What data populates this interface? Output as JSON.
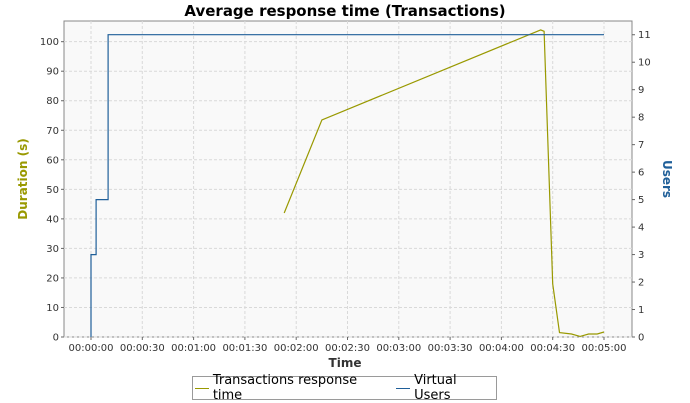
{
  "chart_data": {
    "type": "line",
    "title": "Average response time (Transactions)",
    "xlabel": "Time",
    "ylabel": "Duration (s)",
    "y2label": "Users",
    "xlim": [
      "00:00:00",
      "00:05:00"
    ],
    "ylim": [
      0,
      107
    ],
    "y2lim": [
      0,
      11.5
    ],
    "x_ticks": [
      "00:00:00",
      "00:00:30",
      "00:01:00",
      "00:01:30",
      "00:02:00",
      "00:02:30",
      "00:03:00",
      "00:03:30",
      "00:04:00",
      "00:04:30",
      "00:05:00"
    ],
    "y_ticks": [
      "0",
      "10",
      "20",
      "30",
      "40",
      "50",
      "60",
      "70",
      "80",
      "90",
      "100"
    ],
    "y2_ticks": [
      "0",
      "1",
      "2",
      "3",
      "4",
      "5",
      "6",
      "7",
      "8",
      "9",
      "10",
      "11"
    ],
    "grid": true,
    "legend_position": "bottom",
    "series": [
      {
        "name": "Transactions response time",
        "axis": "left",
        "color": "#999900",
        "x": [
          "00:01:53",
          "00:02:15",
          "00:04:23",
          "00:04:25",
          "00:04:30",
          "00:04:34",
          "00:04:41",
          "00:04:46",
          "00:04:51",
          "00:04:56",
          "00:05:00"
        ],
        "y": [
          42,
          73.5,
          104,
          103.5,
          18,
          1.5,
          1,
          0.2,
          1,
          1,
          1.7
        ]
      },
      {
        "name": "Virtual Users",
        "axis": "right",
        "color": "#1f5f99",
        "step": true,
        "x": [
          "00:00:00",
          "00:00:00",
          "00:00:03",
          "00:00:03",
          "00:00:10",
          "00:00:10",
          "00:05:00"
        ],
        "y": [
          0,
          3,
          3,
          5,
          5,
          11,
          11
        ]
      }
    ]
  }
}
